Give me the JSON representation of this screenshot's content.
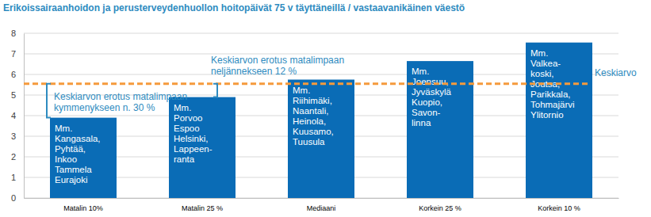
{
  "chart_data": {
    "type": "bar",
    "title": "Erikoissairaanhoidon ja perusterveydenhuollon hoitopäivät 75 v täyttäneillä / vastaavanikäinen väestö",
    "categories": [
      "Matalin 10%",
      "Matalin 25 %",
      "Mediaani",
      "Korkein 25 %",
      "Korkein 10 %"
    ],
    "values": [
      3.9,
      4.9,
      5.75,
      6.65,
      7.55
    ],
    "color": "#0a6cb6",
    "ylim": [
      0,
      8
    ],
    "yticks": [
      0,
      1,
      2,
      3,
      4,
      5,
      6,
      7,
      8
    ],
    "grid": true,
    "bar_texts": [
      [
        "Mm.",
        "Kangasala,",
        "Pyhtää,",
        "Inkoo",
        "Tammela",
        "Eurajoki"
      ],
      [
        "Mm.",
        "Porvoo",
        "Espoo",
        "Helsinki,",
        "Lappeen-",
        "ranta"
      ],
      [
        "Mm.",
        "Riihimäki,",
        "Naantali,",
        "Heinola,",
        "Kuusamo,",
        "Tuusula"
      ],
      [
        "Mm.",
        "Joensuu,",
        "Jyväskylä",
        "Kuopio,",
        "Savon-",
        "linna"
      ],
      [
        "Mm.",
        "Valkea-",
        "koski,",
        "Joutsa,",
        "Parikkala,",
        "Tohmajärvi",
        "Ylitornio"
      ]
    ],
    "mean_line": {
      "value": 5.55,
      "label": "Keskiarvo",
      "color": "#f59a3c"
    },
    "annotations": [
      {
        "lines": [
          "Keskiarvon erotus matalimpaan",
          "kymmenykseen n. 30 %"
        ]
      },
      {
        "lines": [
          "Keskiarvon erotus matalimpaan",
          "neljännekseen 12 %"
        ]
      }
    ]
  }
}
